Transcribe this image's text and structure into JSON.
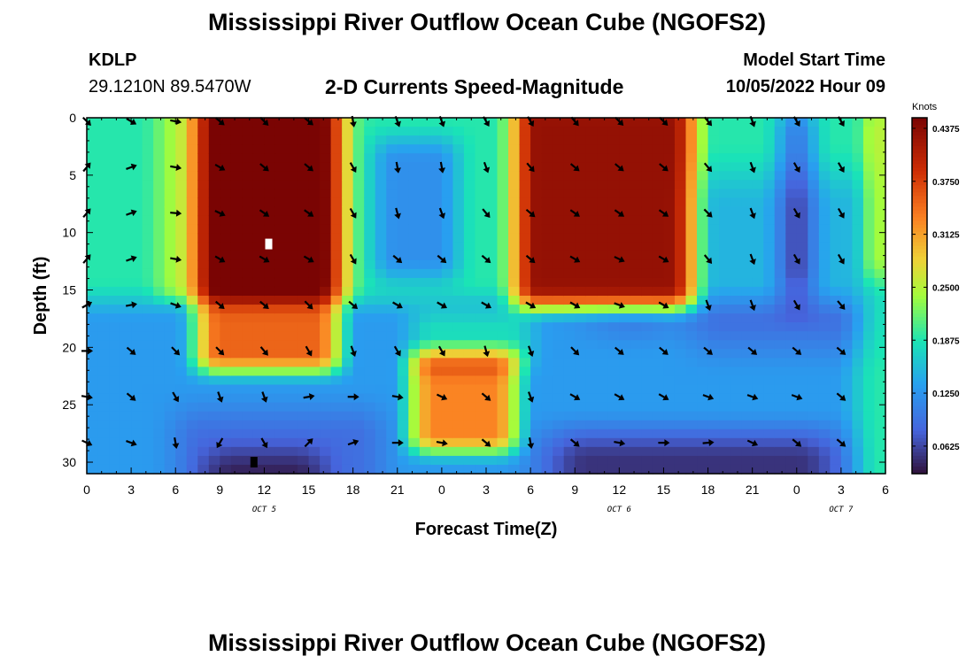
{
  "page_title": "Mississippi River Outflow Ocean Cube (NGOFS2)",
  "footer_title": "Mississippi River Outflow Ocean Cube (NGOFS2)",
  "station": {
    "id": "KDLP",
    "coords": "29.1210N  89.5470W"
  },
  "model": {
    "start_label": "Model Start Time",
    "start_value": "10/05/2022 Hour 09"
  },
  "chart_data": {
    "type": "heatmap",
    "title": "2-D Currents Speed-Magnitude",
    "xlabel": "Forecast Time(Z)",
    "ylabel": "Depth (ft)",
    "x_range_hours": [
      0,
      54
    ],
    "y_range_ft": [
      0,
      31
    ],
    "x_tick_hours": [
      0,
      3,
      6,
      9,
      12,
      15,
      18,
      21,
      24,
      27,
      30,
      33,
      36,
      39,
      42,
      45,
      48,
      51,
      54
    ],
    "x_tick_labels": [
      "0",
      "3",
      "6",
      "9",
      "12",
      "15",
      "18",
      "21",
      "0",
      "3",
      "6",
      "9",
      "12",
      "15",
      "18",
      "21",
      "0",
      "3",
      "6"
    ],
    "y_ticks": [
      0,
      5,
      10,
      15,
      20,
      25,
      30
    ],
    "y_tick_labels": [
      "0",
      "5",
      "10",
      "15",
      "20",
      "25",
      "30"
    ],
    "date_labels": [
      {
        "text": "OCT 5",
        "hour": 12
      },
      {
        "text": "OCT 6",
        "hour": 36
      },
      {
        "text": "OCT 7",
        "hour": 51
      }
    ],
    "colorbar": {
      "unit": "Knots",
      "min": 0.03,
      "max": 0.45,
      "tick_labels": [
        "0.4375",
        "0.3750",
        "0.3125",
        "0.2500",
        "0.1875",
        "0.1250",
        "0.0625"
      ],
      "tick_values": [
        0.4375,
        0.375,
        0.3125,
        0.25,
        0.1875,
        0.125,
        0.0625
      ]
    },
    "vector_columns_hours": [
      0,
      3,
      6,
      9,
      12,
      15,
      18,
      21,
      24,
      27,
      30,
      33,
      36,
      39,
      42,
      45,
      48,
      51
    ],
    "vector_rows_ft": [
      0,
      4,
      8,
      12,
      16,
      20,
      24,
      28
    ],
    "vector_directions_deg": [
      [
        45,
        30,
        10,
        40,
        45,
        40,
        80,
        70,
        70,
        60,
        60,
        50,
        45,
        45,
        50,
        70,
        60,
        60
      ],
      [
        -50,
        -20,
        10,
        30,
        40,
        40,
        60,
        80,
        80,
        70,
        50,
        40,
        40,
        40,
        50,
        70,
        60,
        60
      ],
      [
        -50,
        -20,
        5,
        25,
        35,
        35,
        60,
        75,
        70,
        50,
        40,
        35,
        35,
        35,
        45,
        70,
        60,
        60
      ],
      [
        -50,
        -20,
        10,
        30,
        30,
        30,
        60,
        40,
        40,
        40,
        40,
        30,
        25,
        30,
        50,
        70,
        60,
        60
      ],
      [
        -30,
        -10,
        20,
        40,
        40,
        45,
        40,
        30,
        30,
        30,
        30,
        30,
        20,
        30,
        70,
        70,
        60,
        50
      ],
      [
        0,
        40,
        45,
        45,
        50,
        60,
        70,
        60,
        60,
        75,
        70,
        45,
        40,
        40,
        40,
        40,
        40,
        40
      ],
      [
        10,
        40,
        60,
        70,
        70,
        -10,
        0,
        10,
        25,
        40,
        70,
        30,
        30,
        30,
        20,
        20,
        20,
        40
      ],
      [
        25,
        20,
        80,
        120,
        60,
        -45,
        -20,
        0,
        10,
        40,
        80,
        40,
        10,
        0,
        -5,
        25,
        40,
        40
      ]
    ],
    "markers": [
      {
        "hour": 12.3,
        "depth": 11,
        "color": "#ffffff"
      },
      {
        "hour": 11.3,
        "depth": 30,
        "color": "#000000"
      }
    ]
  }
}
